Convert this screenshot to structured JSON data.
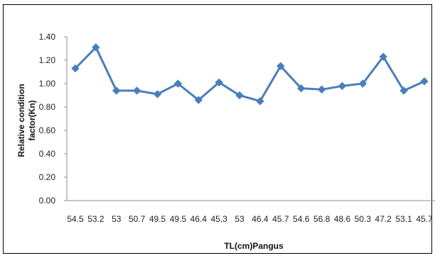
{
  "chart_data": {
    "type": "line",
    "categories": [
      "54.5",
      "53.2",
      "53",
      "50.7",
      "49.5",
      "49.5",
      "46.4",
      "45.3",
      "53",
      "46.4",
      "45.7",
      "54.6",
      "56.8",
      "48.6",
      "50.3",
      "47.2",
      "53.1",
      "45.7"
    ],
    "values": [
      1.13,
      1.31,
      0.94,
      0.94,
      0.91,
      1.0,
      0.86,
      1.01,
      0.9,
      0.85,
      1.15,
      0.96,
      0.95,
      0.98,
      1.0,
      1.23,
      0.94,
      1.02
    ],
    "yticks": [
      "0.00",
      "0.20",
      "0.40",
      "0.60",
      "0.80",
      "1.00",
      "1.20",
      "1.40"
    ],
    "ylim": [
      0,
      1.4
    ],
    "title": "",
    "xlabel": "TL(cm)Pangus",
    "ylabel_line1": "Relative condition",
    "ylabel_line2": "factor(Kn)",
    "grid": false,
    "legend": "none",
    "series_color": "#4a7ebb",
    "axis_color": "#8c8c8c"
  }
}
